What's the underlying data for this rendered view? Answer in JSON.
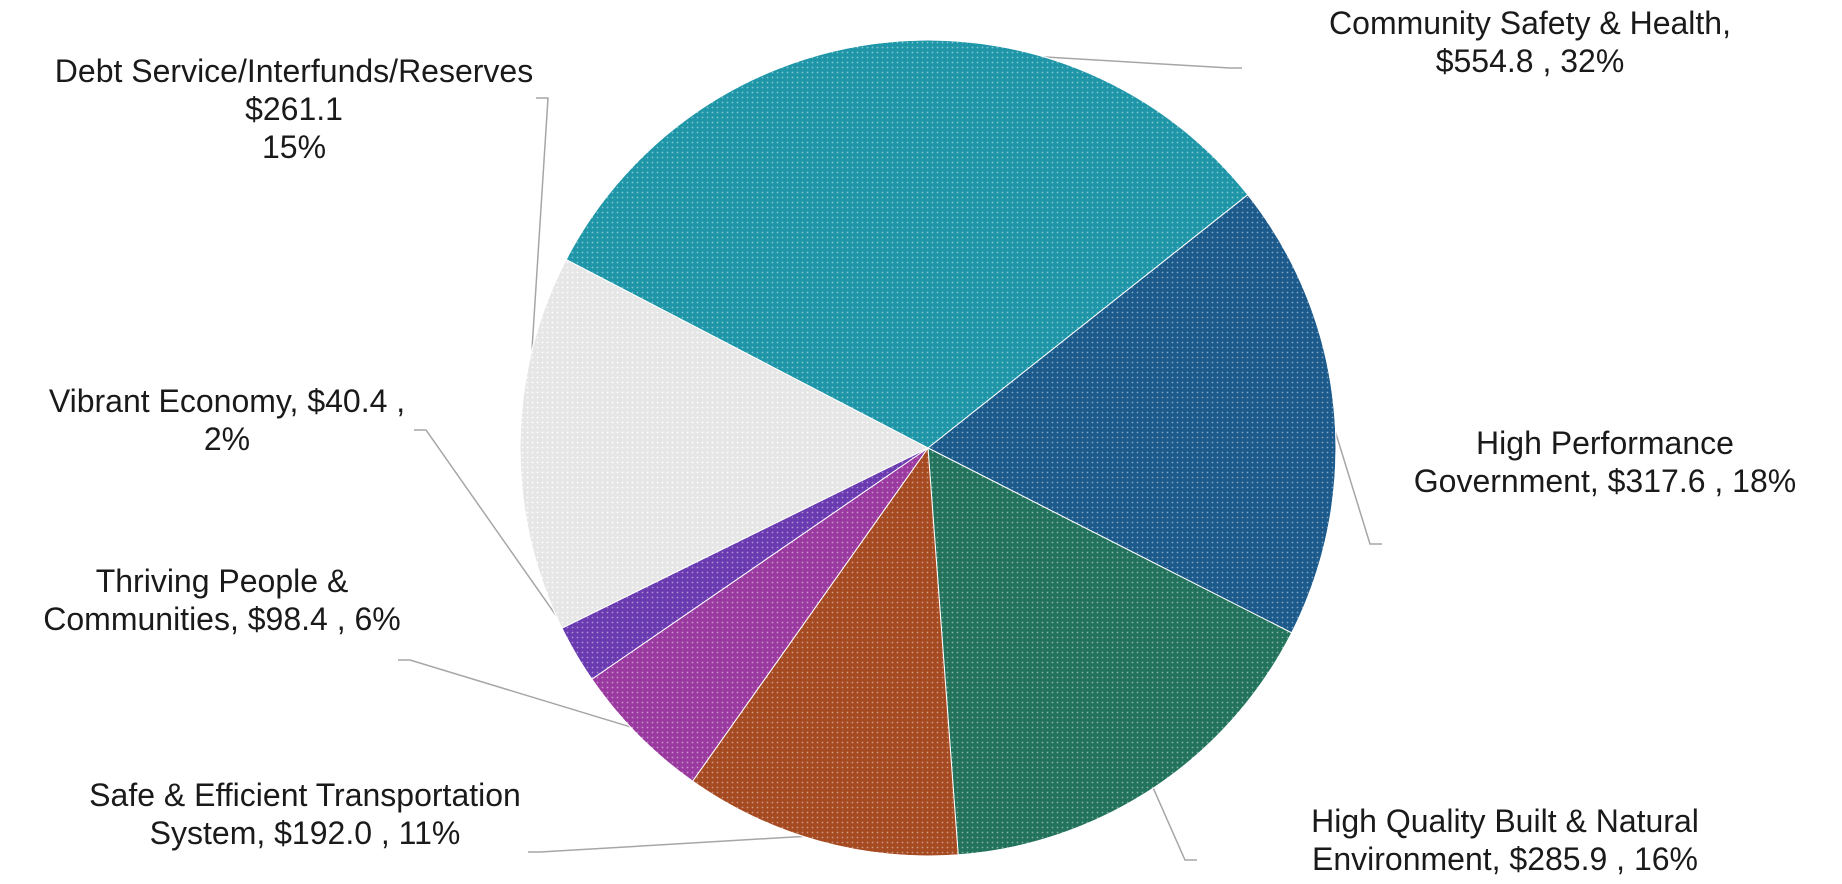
{
  "chart_data": {
    "type": "pie",
    "title": "",
    "slices": [
      {
        "name": "Community Safety & Health",
        "value": 554.8,
        "percent": 32,
        "color": "#1e96a8",
        "label_lines": [
          "Community Safety & Health,",
          "$554.8 , 32%"
        ]
      },
      {
        "name": "High Performance Government",
        "value": 317.6,
        "percent": 18,
        "color": "#1c5a8c",
        "label_lines": [
          "High Performance",
          "Government,  $317.6 , 18%"
        ]
      },
      {
        "name": "High Quality Built & Natural Environment",
        "value": 285.9,
        "percent": 16,
        "color": "#23735c",
        "label_lines": [
          "High Quality Built & Natural",
          "Environment,  $285.9 , 16%"
        ]
      },
      {
        "name": "Safe & Efficient Transportation System",
        "value": 192.0,
        "percent": 11,
        "color": "#a64a22",
        "label_lines": [
          "Safe & Efficient Transportation",
          "System,  $192.0 , 11%"
        ]
      },
      {
        "name": "Thriving People & Communities",
        "value": 98.4,
        "percent": 6,
        "color": "#9a3aa0",
        "label_lines": [
          "Thriving People &",
          "Communities,  $98.4 , 6%"
        ]
      },
      {
        "name": "Vibrant Economy",
        "value": 40.4,
        "percent": 2,
        "color": "#6a3ab0",
        "label_lines": [
          "Vibrant Economy,  $40.4 ,",
          "2%"
        ]
      },
      {
        "name": "Debt Service/Interfunds/Reserves",
        "value": 261.1,
        "percent": 15,
        "color": "#e6e6e6",
        "label_lines": [
          "Debt Service/Interfunds/Reserves",
          "$261.1",
          "15%"
        ]
      }
    ]
  }
}
